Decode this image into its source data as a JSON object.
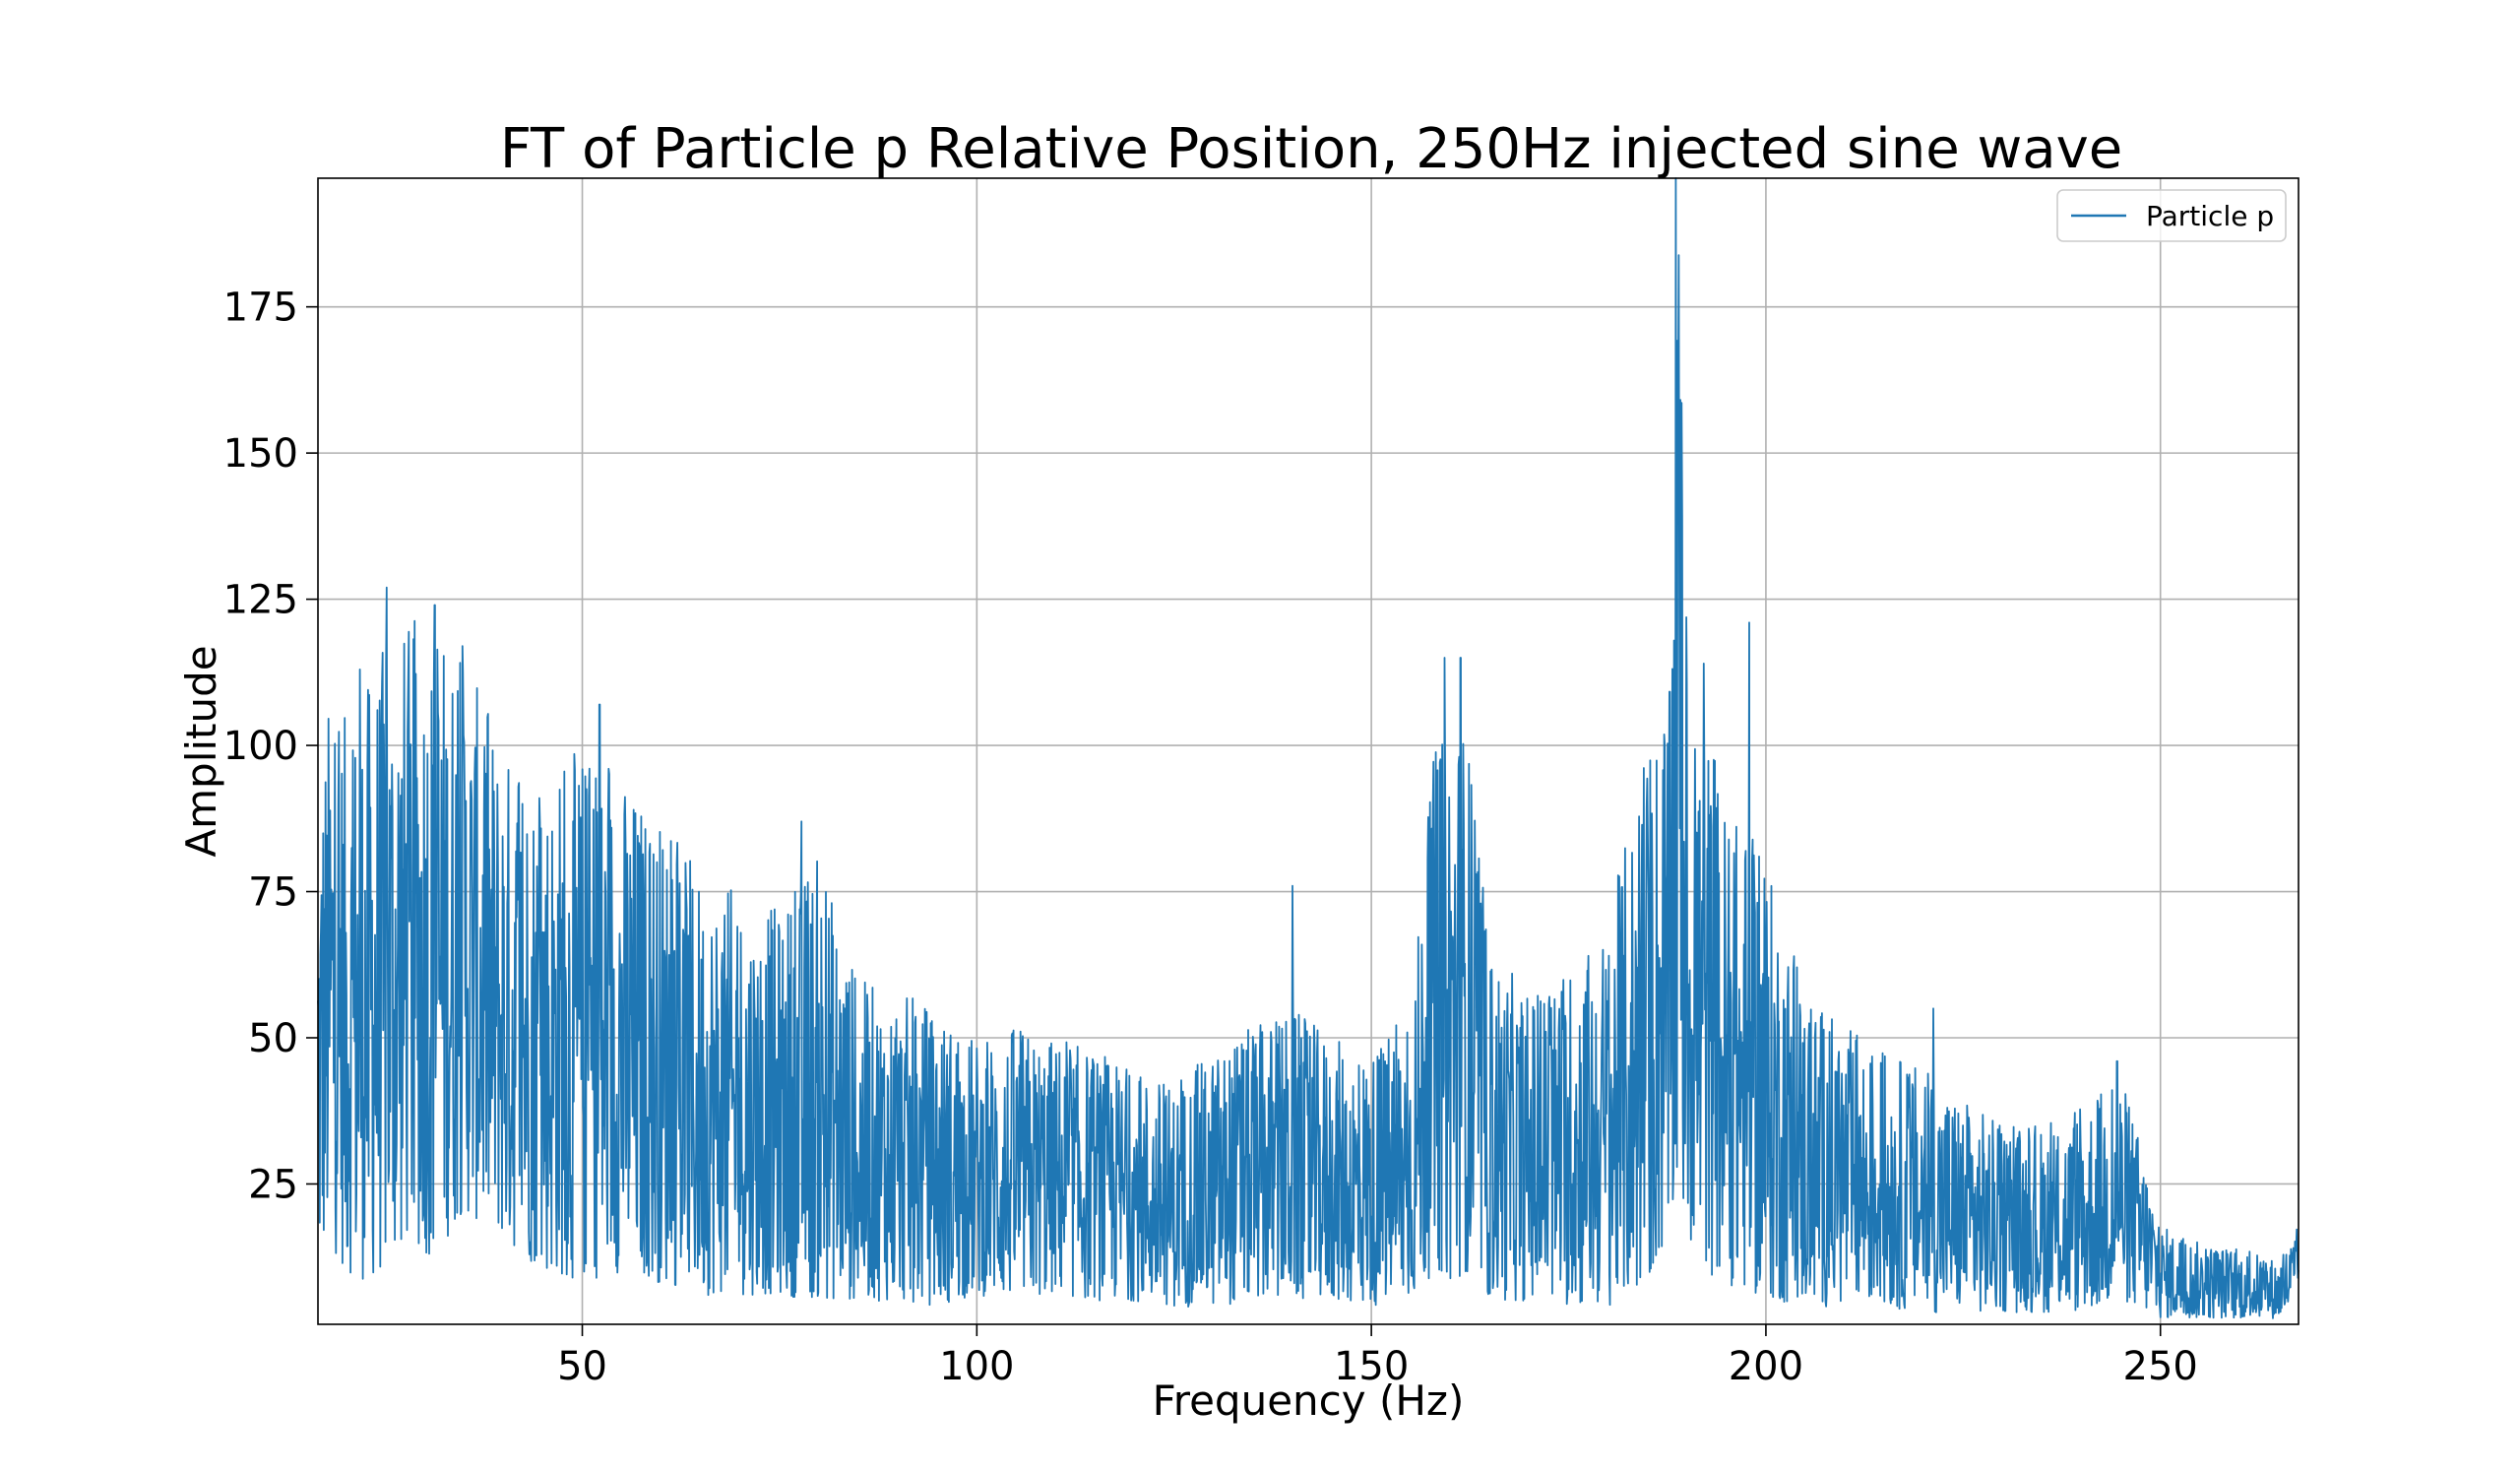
{
  "chart_data": {
    "type": "line",
    "title": "FT of Particle p Relative Position, 250Hz injected sine wave",
    "xlabel": "Frequency (Hz)",
    "ylabel": "Amplitude",
    "xlim": [
      16.5,
      267.5
    ],
    "ylim": [
      1,
      197
    ],
    "xticks": [
      50,
      100,
      150,
      200,
      250
    ],
    "yticks": [
      25,
      50,
      75,
      100,
      125,
      150,
      175
    ],
    "grid": true,
    "legend_position": "top-right",
    "series": [
      {
        "name": "Particle p",
        "color": "#1f77b4",
        "envelope": {
          "x": [
            16.5,
            18,
            20,
            23,
            25,
            28,
            31,
            35,
            40,
            45,
            50,
            55,
            60,
            65,
            70,
            75,
            80,
            85,
            90,
            95,
            100,
            105,
            110,
            115,
            120,
            125,
            130,
            135,
            140,
            145,
            150,
            155,
            158,
            160,
            162,
            165,
            170,
            175,
            180,
            184,
            186,
            188,
            189,
            190,
            192,
            195,
            198,
            200,
            205,
            210,
            215,
            220,
            225,
            230,
            235,
            240,
            243,
            245,
            248,
            250,
            255,
            260,
            265,
            267.5
          ],
          "upper": [
            90,
            110,
            105,
            112,
            118,
            122,
            123,
            115,
            100,
            95,
            100,
            95,
            88,
            78,
            75,
            72,
            82,
            60,
            58,
            55,
            50,
            52,
            50,
            48,
            45,
            42,
            48,
            52,
            55,
            50,
            48,
            55,
            100,
            108,
            105,
            65,
            58,
            62,
            70,
            95,
            105,
            110,
            197,
            115,
            105,
            90,
            85,
            80,
            58,
            52,
            48,
            45,
            40,
            35,
            35,
            38,
            42,
            44,
            30,
            18,
            15,
            14,
            12,
            18
          ],
          "lower": [
            8,
            15,
            10,
            8,
            10,
            15,
            12,
            20,
            15,
            10,
            8,
            10,
            8,
            6,
            6,
            6,
            5,
            5,
            5,
            4,
            6,
            5,
            6,
            5,
            5,
            4,
            4,
            5,
            5,
            5,
            4,
            5,
            10,
            8,
            10,
            5,
            5,
            4,
            4,
            6,
            10,
            15,
            20,
            15,
            10,
            8,
            6,
            5,
            4,
            4,
            4,
            3,
            3,
            3,
            3,
            3,
            4,
            5,
            3,
            2,
            2,
            2,
            2,
            4
          ]
        },
        "peaks": [
          [
            21.8,
            113
          ],
          [
            25.2,
            127
          ],
          [
            31.3,
            124
          ],
          [
            34.8,
            117
          ],
          [
            52.2,
            107
          ],
          [
            77.8,
            87
          ],
          [
            140,
            76
          ],
          [
            159.3,
            115
          ],
          [
            161.3,
            115
          ],
          [
            188.6,
            197
          ],
          [
            188.9,
            155
          ],
          [
            192.1,
            114
          ],
          [
            197.9,
            121
          ],
          [
            221.2,
            55
          ],
          [
            244.5,
            46
          ]
        ]
      }
    ]
  }
}
